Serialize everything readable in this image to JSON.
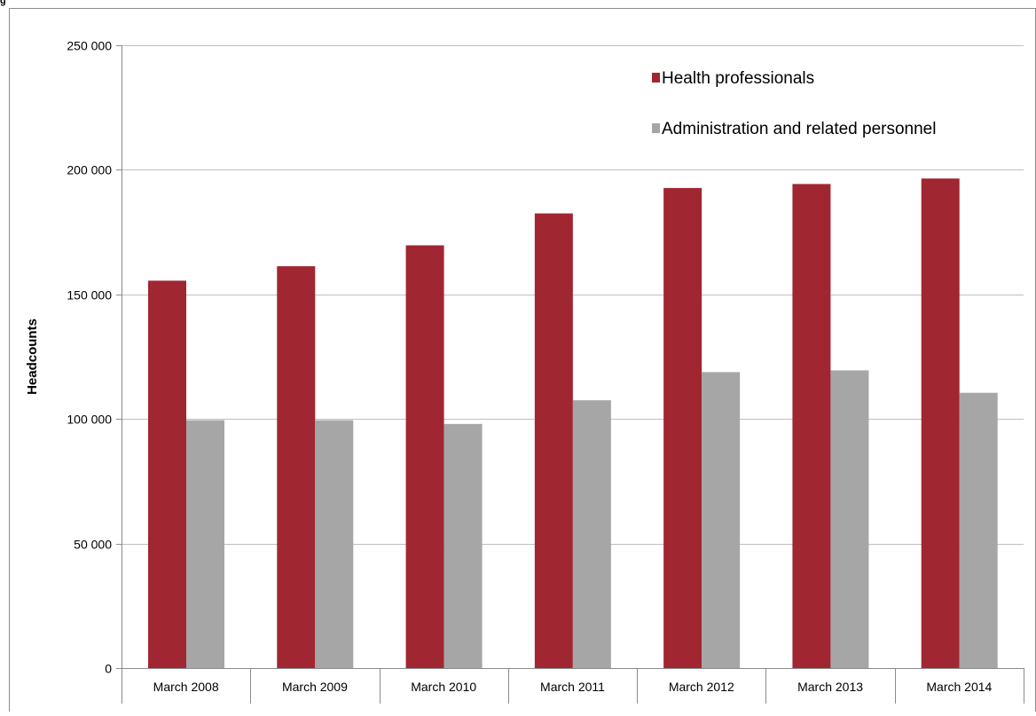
{
  "caption_fragment": "g",
  "chart_data": {
    "type": "bar",
    "title": "",
    "xlabel": "",
    "ylabel": "Headcounts",
    "ylim": [
      0,
      250000
    ],
    "yticks": [
      0,
      50000,
      100000,
      150000,
      200000,
      250000
    ],
    "ytick_labels": [
      "0",
      "50 000",
      "100 000",
      "150 000",
      "200 000",
      "250 000"
    ],
    "grid": true,
    "legend_position": "top-right",
    "categories": [
      "March 2008",
      "March 2009",
      "March 2010",
      "March 2011",
      "March 2012",
      "March 2013",
      "March 2014"
    ],
    "series": [
      {
        "name": "Health professionals",
        "color": "#A02631",
        "values": [
          155500,
          161300,
          169700,
          182500,
          192700,
          194300,
          196500
        ]
      },
      {
        "name": "Administration and related personnel",
        "color": "#A6A6A6",
        "values": [
          99500,
          99500,
          98000,
          107500,
          118800,
          119500,
          110500
        ]
      }
    ]
  }
}
